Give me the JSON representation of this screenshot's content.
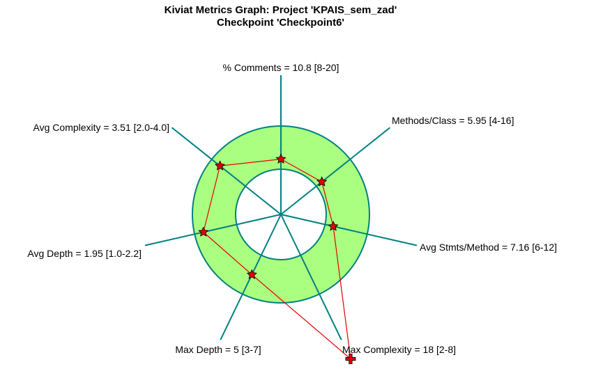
{
  "chart_data": {
    "type": "radar",
    "title": "Kiviat Metrics Graph: Project 'KPAIS_sem_zad'",
    "subtitle": "Checkpoint 'Checkpoint6'",
    "axes": [
      {
        "label": "% Comments = 10.8 [8-20]",
        "name": "% Comments",
        "value": 10.8,
        "min": 8,
        "max": 20,
        "marker": "star"
      },
      {
        "label": "Methods/Class = 5.95 [4-16]",
        "name": "Methods/Class",
        "value": 5.95,
        "min": 4,
        "max": 16,
        "marker": "star"
      },
      {
        "label": "Avg Stmts/Method = 7.16 [6-12]",
        "name": "Avg Stmts/Method",
        "value": 7.16,
        "min": 6,
        "max": 12,
        "marker": "star"
      },
      {
        "label": "Max Complexity = 18 [2-8]",
        "name": "Max Complexity",
        "value": 18,
        "min": 2,
        "max": 8,
        "marker": "cross"
      },
      {
        "label": "Max Depth = 5 [3-7]",
        "name": "Max Depth",
        "value": 5,
        "min": 3,
        "max": 7,
        "marker": "star"
      },
      {
        "label": "Avg Depth = 1.95 [1.0-2.2]",
        "name": "Avg Depth",
        "value": 1.95,
        "min": 1.0,
        "max": 2.2,
        "marker": "star"
      },
      {
        "label": "Avg Complexity = 3.51 [2.0-4.0]",
        "name": "Avg Complexity",
        "value": 3.51,
        "min": 2.0,
        "max": 4.0,
        "marker": "star"
      }
    ],
    "colors": {
      "band_fill": "#aaff80",
      "band_stroke": "#008080",
      "axis": "#008080",
      "polygon": "#e00000",
      "marker": "#e00000"
    }
  }
}
